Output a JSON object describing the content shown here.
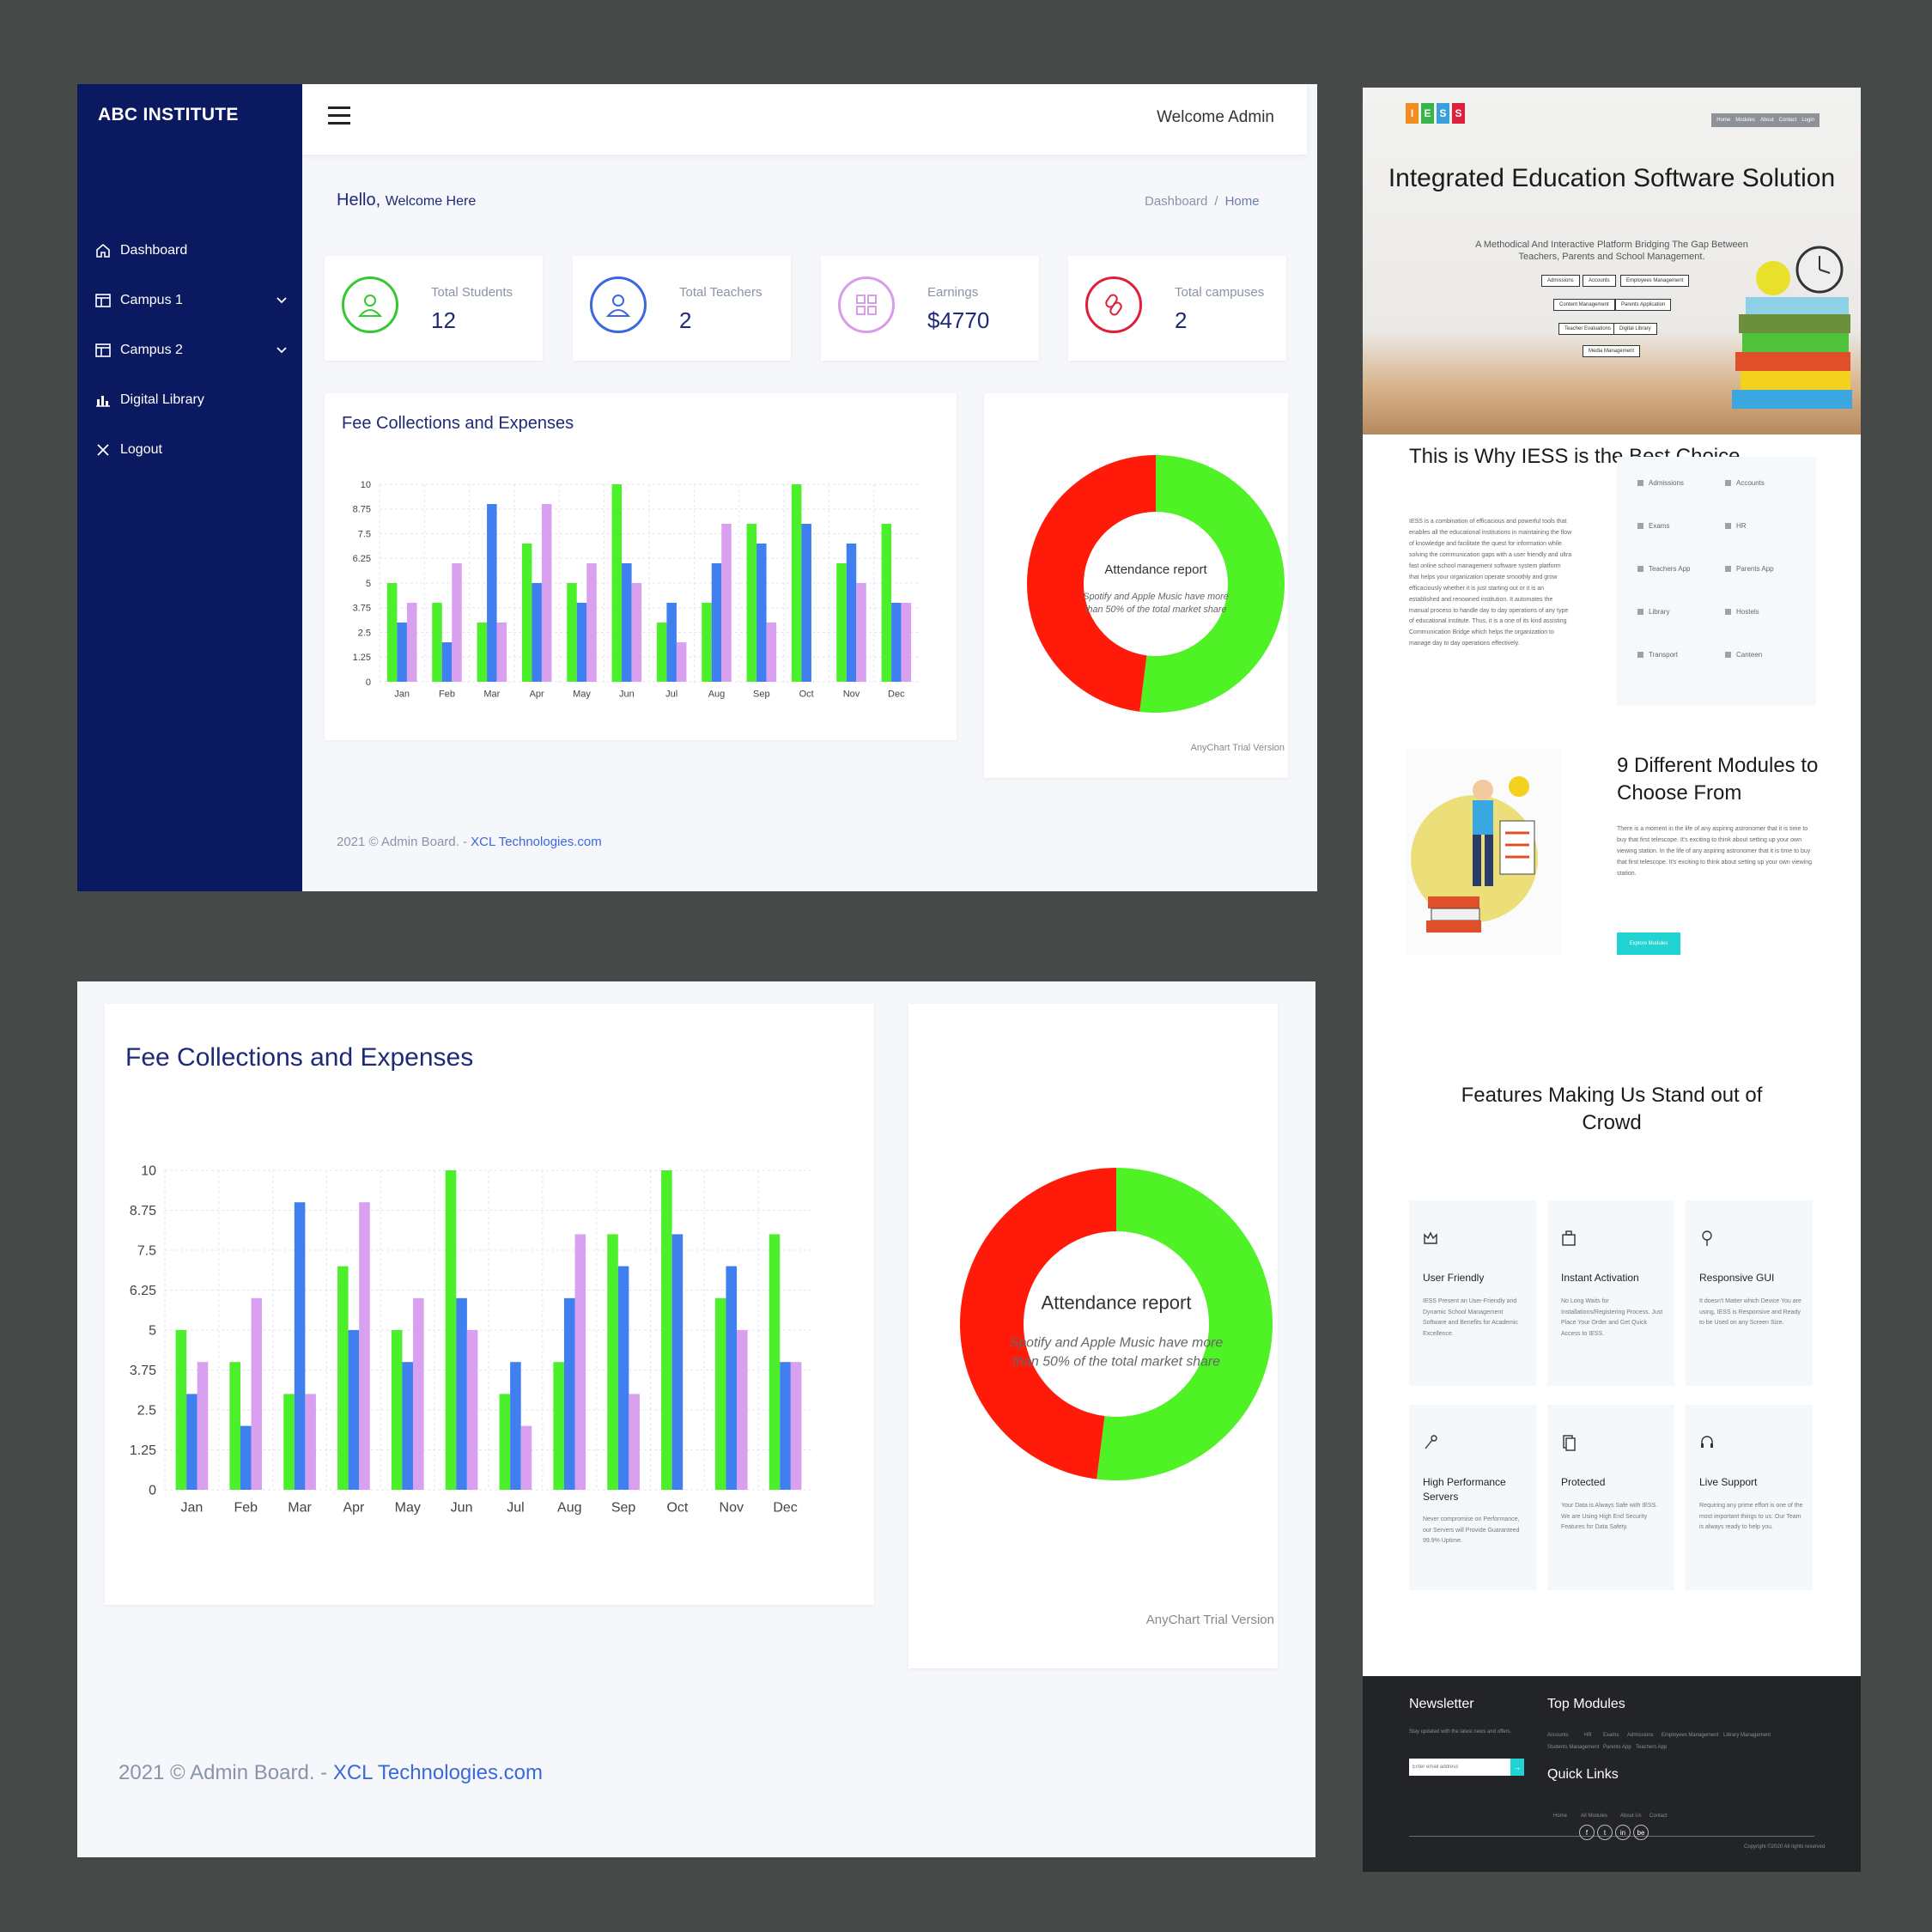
{
  "dashboard": {
    "brand": "ABC INSTITUTE",
    "nav": [
      {
        "label": "Dashboard",
        "icon": "home-icon"
      },
      {
        "label": "Campus 1",
        "icon": "layout-icon",
        "has_submenu": true
      },
      {
        "label": "Campus 2",
        "icon": "layout-icon",
        "has_submenu": true
      },
      {
        "label": "Digital Library",
        "icon": "bar-chart-icon"
      },
      {
        "label": "Logout",
        "icon": "close-icon"
      }
    ],
    "welcome": "Welcome Admin",
    "hello_main": "Hello,",
    "hello_sub": "Welcome Here",
    "breadcrumb": {
      "item1": "Dashboard",
      "sep": "/",
      "item2": "Home"
    },
    "stats": [
      {
        "label": "Total Students",
        "value": "12",
        "color": "#35c832",
        "icon": "user-icon"
      },
      {
        "label": "Total Teachers",
        "value": "2",
        "color": "#3a68e0",
        "icon": "user-icon"
      },
      {
        "label": "Earnings",
        "value": "$4770",
        "color": "#d89ce8",
        "icon": "grid-icon"
      },
      {
        "label": "Total campuses",
        "value": "2",
        "color": "#e0203a",
        "icon": "link-icon"
      }
    ],
    "chart_card_title": "Fee Collections and Expenses",
    "donut_title": "Attendance report",
    "donut_subtitle": "Spotify and Apple Music have more than 50% of the total market share",
    "credit": "AnyChart Trial Version",
    "footer_text": "2021 © Admin Board. - ",
    "footer_link": "XCL Technologies.com"
  },
  "chart_data": [
    {
      "type": "bar",
      "title": "Fee Collections and Expenses",
      "categories": [
        "Jan",
        "Feb",
        "Mar",
        "Apr",
        "May",
        "Jun",
        "Jul",
        "Aug",
        "Sep",
        "Oct",
        "Nov",
        "Dec"
      ],
      "yticks": [
        "0",
        "1.25",
        "2.5",
        "3.75",
        "5",
        "6.25",
        "7.5",
        "8.75",
        "10"
      ],
      "ylim": [
        0,
        10
      ],
      "grid": true,
      "colors": [
        "#4cf02a",
        "#3f7ff0",
        "#d8a0ee"
      ],
      "series": [
        {
          "values": [
            5,
            4,
            3,
            7,
            5,
            10,
            3,
            4,
            8,
            10,
            6,
            8
          ]
        },
        {
          "values": [
            3,
            2,
            9,
            5,
            4,
            6,
            4,
            6,
            7,
            8,
            7,
            4
          ]
        },
        {
          "values": [
            4,
            6,
            3,
            9,
            6,
            5,
            2,
            8,
            3,
            0,
            5,
            4
          ]
        }
      ]
    },
    {
      "type": "pie",
      "title": "Attendance report",
      "slices": [
        {
          "value": 52,
          "color": "#4ef225"
        },
        {
          "value": 48,
          "color": "#ff1a0a"
        }
      ]
    }
  ],
  "site": {
    "logo_letters": [
      "I",
      "E",
      "S",
      "S"
    ],
    "logo_colors": [
      "#f28c1e",
      "#38b549",
      "#3aa0dc",
      "#e0203a"
    ],
    "menu": [
      "Home",
      "Modules",
      "About",
      "Contact",
      "Login"
    ],
    "hero_title": "Integrated Education Software Solution",
    "hero_sub": "A Methodical And Interactive Platform Bridging The Gap Between Teachers, Parents and School Management.",
    "hero_tags": [
      "Admissions",
      "Accounts",
      "Employees Management",
      "Content Management",
      "Parents Application",
      "Teacher Evaluations",
      "Digital Library",
      "Media Management"
    ],
    "why_title": "This is Why IESS is the Best Choice",
    "why_text": "IESS is a combination of efficacious and powerful tools that enables all the educational institutions in maintaining the flow of knowledge and facilitate the quest for information while solving the communication gaps with a user friendly and ultra fast online school management software system platform that helps your organization operate smoothly and grow efficaciously whether it is just starting out or it is an established and renowned institution. It automates the manual process to handle day to day operations of any type of educational institute. Thus, it is a one of its kind assisting Communication Bridge which helps the organization to manage day to day operations effectively.",
    "modules": [
      "Admissions",
      "Accounts",
      "Exams",
      "HR",
      "Teachers App",
      "Parents App",
      "Library",
      "Hostels",
      "Transport",
      "Canteen"
    ],
    "nine_title": "9 Different Modules to Choose From",
    "nine_text": "There is a moment in the life of any aspiring astronomer that it is time to buy that first telescope. It's exciting to think about setting up your own viewing station. In the life of any aspiring astronomer that it is time to buy that first telescope. It's exciting to think about setting up your own viewing station.",
    "nine_button": "Explore Modules",
    "features_title": "Features Making Us Stand out of Crowd",
    "features": [
      {
        "title": "User Friendly",
        "desc": "IESS Present an User-Friendly and Dynamic School Management Software and Benefits for Academic Excellence."
      },
      {
        "title": "Instant Activation",
        "desc": "No Long Waits for Installations/Registering Process. Just Place Your Order and Get Quick Access to IESS."
      },
      {
        "title": "Responsive GUI",
        "desc": "It doesn't Matter which Device You are using, IESS is Responsive and Ready to be Used on any Screen Size."
      },
      {
        "title": "High Performance Servers",
        "desc": "Never compromise on Performance, our Servers will Provide Guaranteed 99.9% Uptime."
      },
      {
        "title": "Protected",
        "desc": "Your Data is Always Safe with IESS. We are Using High End Security Features for Data Safety."
      },
      {
        "title": "Live Support",
        "desc": "Requiring any prime effort is one of the most important things to us. Our Team is always ready to help you."
      }
    ],
    "newsletter_title": "Newsletter",
    "newsletter_text": "Stay updated with the latest news and offers.",
    "newsletter_placeholder": "Enter email address",
    "newsletter_btn": "→",
    "top_modules_title": "Top Modules",
    "top_modules": [
      "Accounts",
      "HR",
      "Exams",
      "Admissions",
      "Employees Management",
      "Library Management",
      "Students Management",
      "Parents App",
      "Teachers App"
    ],
    "quick_links_title": "Quick Links",
    "quick_links": [
      "Home",
      "All Modules",
      "About Us",
      "Contact"
    ],
    "social": [
      "f",
      "t",
      "in",
      "be"
    ],
    "copyright": "Copyright ©2020 All rights reserved"
  }
}
